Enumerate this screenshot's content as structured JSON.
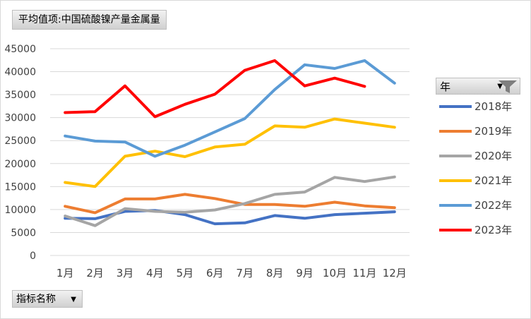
{
  "header": {
    "title": "平均值项:中国硫酸镍产量金属量"
  },
  "field_button": {
    "label": "指标名称"
  },
  "legend": {
    "title": "年"
  },
  "chart_data": {
    "type": "line",
    "categories": [
      "1月",
      "2月",
      "3月",
      "4月",
      "5月",
      "6月",
      "7月",
      "8月",
      "9月",
      "10月",
      "11月",
      "12月"
    ],
    "ylim": [
      0,
      45000
    ],
    "yticks": [
      0,
      5000,
      10000,
      15000,
      20000,
      25000,
      30000,
      35000,
      40000,
      45000
    ],
    "grid": true,
    "legend_position": "right",
    "series": [
      {
        "name": "2018年",
        "color": "#4472C4",
        "values": [
          8100,
          8000,
          9600,
          9800,
          8900,
          6900,
          7100,
          8700,
          8100,
          8900,
          9200,
          9500
        ]
      },
      {
        "name": "2019年",
        "color": "#ED7D31",
        "values": [
          10700,
          9300,
          12300,
          12300,
          13300,
          12400,
          11100,
          11100,
          10700,
          11600,
          10800,
          10400
        ]
      },
      {
        "name": "2020年",
        "color": "#A5A5A5",
        "values": [
          8600,
          6500,
          10200,
          9600,
          9400,
          9900,
          11300,
          13300,
          13800,
          17000,
          16100,
          17100
        ]
      },
      {
        "name": "2021年",
        "color": "#FFC000",
        "values": [
          15900,
          15000,
          21600,
          22700,
          21500,
          23600,
          24200,
          28200,
          27900,
          29700,
          28800,
          27900
        ]
      },
      {
        "name": "2022年",
        "color": "#5B9BD5",
        "values": [
          26000,
          24900,
          24700,
          21600,
          24000,
          26900,
          29800,
          36100,
          41500,
          40700,
          42400,
          37500
        ]
      },
      {
        "name": "2023年",
        "color": "#FF0000",
        "values": [
          31100,
          31300,
          36900,
          30200,
          32900,
          35100,
          40300,
          42400,
          36900,
          38600,
          36800,
          null
        ]
      }
    ]
  }
}
